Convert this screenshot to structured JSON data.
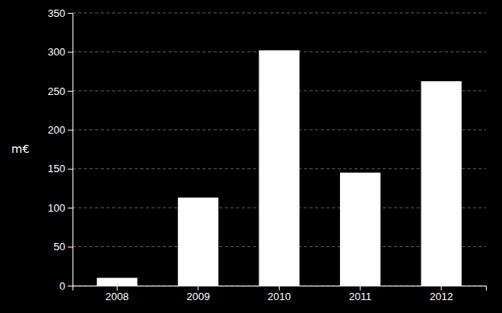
{
  "chart_data": {
    "type": "bar",
    "ylabel": "m€",
    "categories": [
      "2008",
      "2009",
      "2010",
      "2011",
      "2012"
    ],
    "values": [
      10,
      113,
      302,
      145,
      262.3
    ],
    "color": "#ffffff",
    "ylim": [
      0,
      350
    ],
    "yticks": [
      0,
      50,
      100,
      150,
      200,
      250,
      300,
      350
    ],
    "grid": true
  }
}
